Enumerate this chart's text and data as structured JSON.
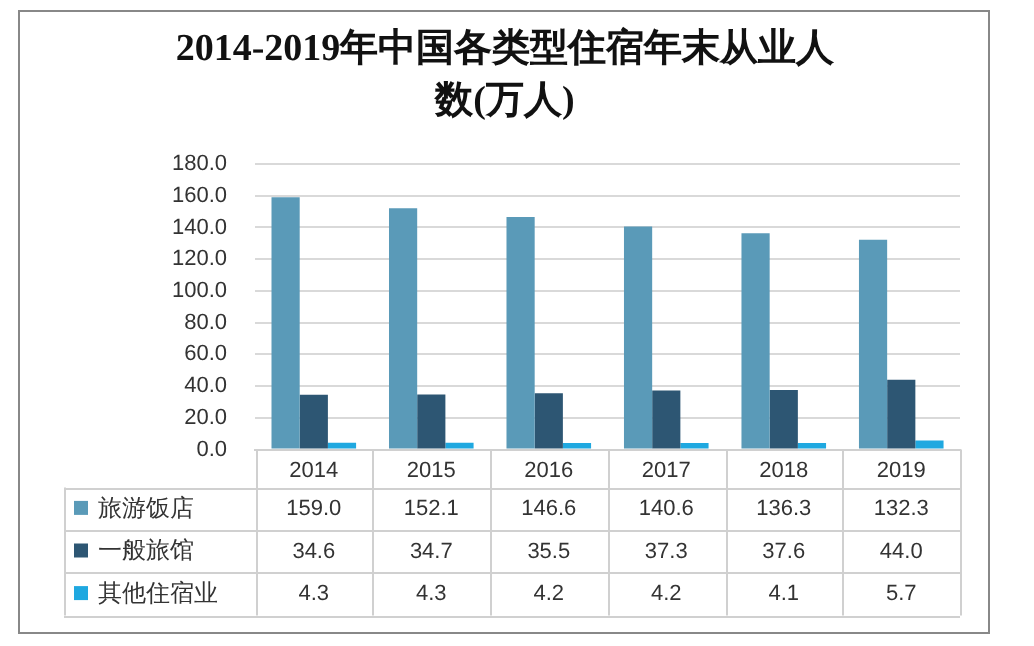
{
  "chart_data": {
    "type": "bar",
    "title": "2014-2019年中国各类型住宿年末从业人数(万人)",
    "categories": [
      "2014",
      "2015",
      "2016",
      "2017",
      "2018",
      "2019"
    ],
    "series": [
      {
        "name": "旅游饭店",
        "color": "#5a9ab8",
        "values": [
          159.0,
          152.1,
          146.6,
          140.6,
          136.3,
          132.3
        ],
        "value_labels": [
          "159.0",
          "152.1",
          "146.6",
          "140.6",
          "136.3",
          "132.3"
        ]
      },
      {
        "name": "一般旅馆",
        "color": "#2d5673",
        "values": [
          34.6,
          34.7,
          35.5,
          37.3,
          37.6,
          44.0
        ],
        "value_labels": [
          "34.6",
          "34.7",
          "35.5",
          "37.3",
          "37.6",
          "44.0"
        ]
      },
      {
        "name": "其他住宿业",
        "color": "#1fa8e0",
        "values": [
          4.3,
          4.3,
          4.2,
          4.2,
          4.1,
          5.7
        ],
        "value_labels": [
          "4.3",
          "4.3",
          "4.2",
          "4.2",
          "4.1",
          "5.7"
        ]
      }
    ],
    "ylim": [
      0,
      180
    ],
    "yticks": [
      {
        "value": 0,
        "label": "0.0"
      },
      {
        "value": 20,
        "label": "20.0"
      },
      {
        "value": 40,
        "label": "40.0"
      },
      {
        "value": 60,
        "label": "60.0"
      },
      {
        "value": 80,
        "label": "80.0"
      },
      {
        "value": 100,
        "label": "100.0"
      },
      {
        "value": 120,
        "label": "120.0"
      },
      {
        "value": 140,
        "label": "140.0"
      },
      {
        "value": 160,
        "label": "160.0"
      },
      {
        "value": 180,
        "label": "180.0"
      }
    ],
    "grid": "y",
    "legend": "bottom"
  }
}
